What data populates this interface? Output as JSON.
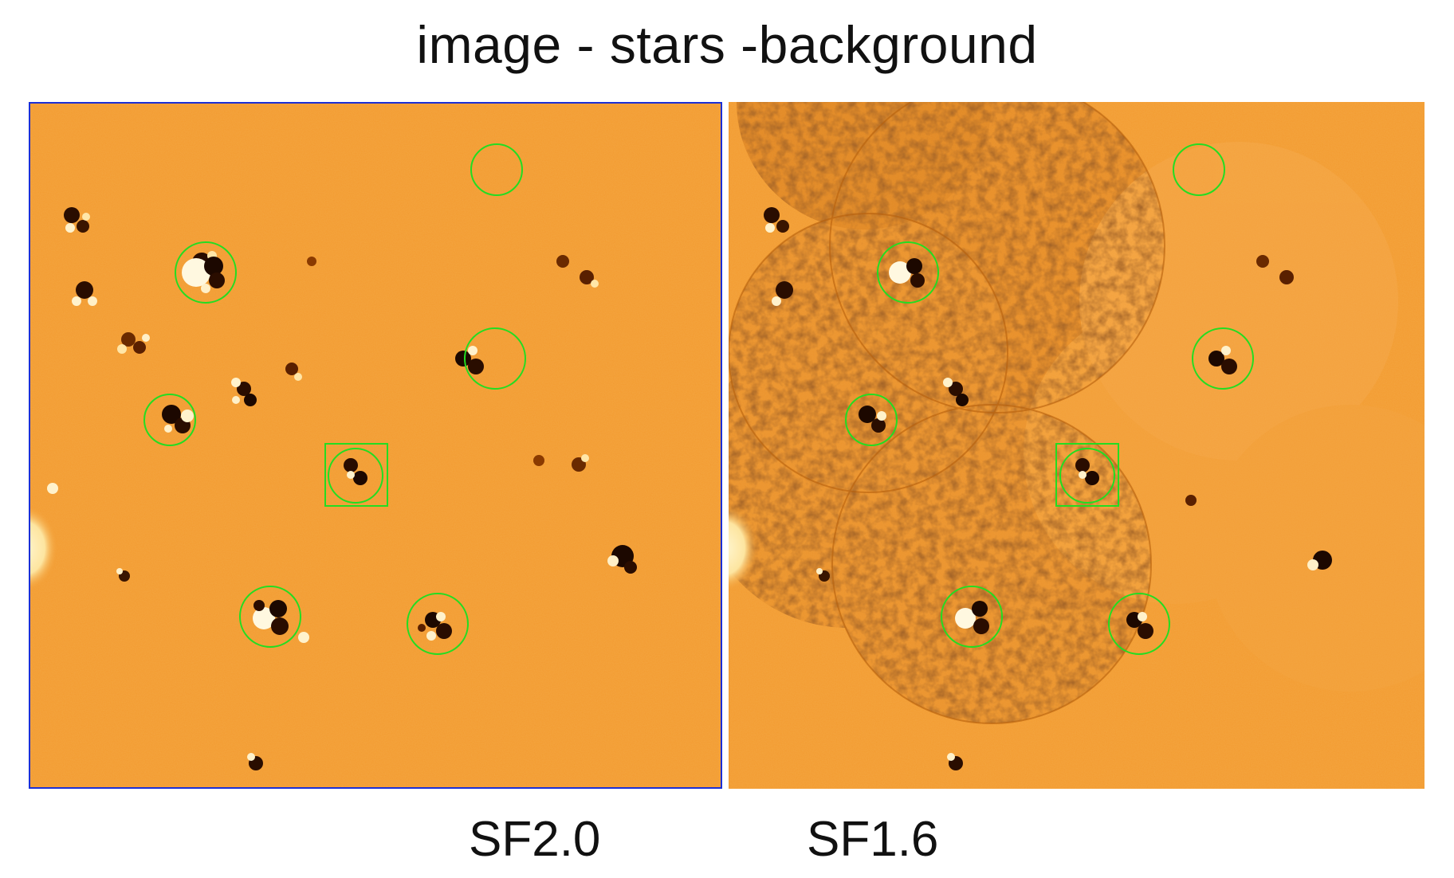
{
  "title": "image - stars -background",
  "panels": [
    {
      "label": "SF2.0"
    },
    {
      "label": "SF1.6"
    }
  ],
  "colors": {
    "background": "#f29a2e",
    "marker": "#22dd22",
    "frame": "#1a2fd6"
  }
}
